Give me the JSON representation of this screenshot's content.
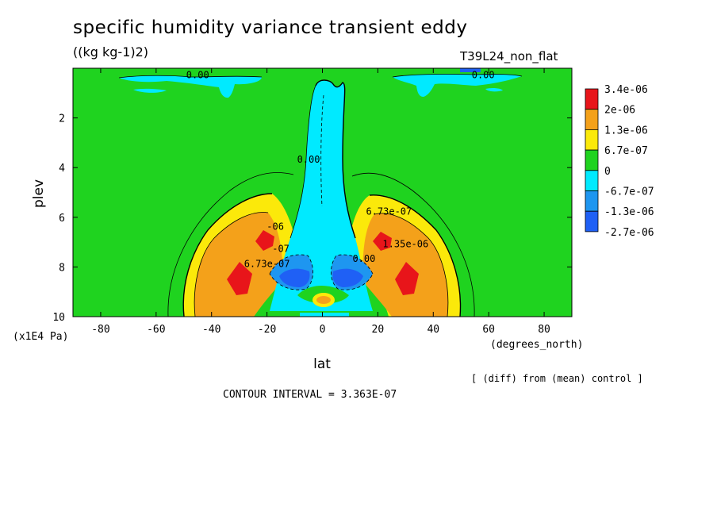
{
  "header": {
    "title": "specific humidity variance transient eddy",
    "units": "((kg kg-1)2)",
    "run_label": "T39L24_non_flat"
  },
  "footer": {
    "diff_note": "[ (diff) from (mean) control ]",
    "contour_interval": "CONTOUR INTERVAL = 3.363E-07"
  },
  "colors": {
    "c_plus3": "#e8151a",
    "c_plus2": "#f4a11a",
    "c_plus1": "#fbe90a",
    "c_zero": "#1fd31f",
    "c_minus1": "#00eaff",
    "c_minus2": "#1e96f0",
    "c_minus3": "#1f60f5"
  },
  "chart_data": {
    "type": "contour",
    "xlabel": "lat",
    "xunit": "(degrees_north)",
    "ylabel": "plev",
    "yunit": "(x1E4 Pa)",
    "xlim": [
      -90,
      90
    ],
    "ylim": [
      10,
      0
    ],
    "x_ticks": [
      "-80",
      "-60",
      "-40",
      "-20",
      "0",
      "20",
      "40",
      "60",
      "80"
    ],
    "x_tick_values": [
      -80,
      -60,
      -40,
      -20,
      0,
      20,
      40,
      60,
      80
    ],
    "y_ticks": [
      "2",
      "4",
      "6",
      "8",
      "10"
    ],
    "y_tick_values": [
      2,
      4,
      6,
      8,
      10
    ],
    "legend": {
      "placement": "right",
      "labels": [
        "3.4e-06",
        "2e-06",
        "1.3e-06",
        "6.7e-07",
        "0",
        "-6.7e-07",
        "-1.3e-06",
        "-2.7e-06"
      ],
      "colors": [
        "#e8151a",
        "#f4a11a",
        "#fbe90a",
        "#1fd31f",
        "#00eaff",
        "#1e96f0",
        "#1f60f5"
      ]
    },
    "contour_labels": [
      {
        "text": "0.00",
        "lat": -45,
        "plev": 0.4
      },
      {
        "text": "0.00",
        "lat": 58,
        "plev": 0.4
      },
      {
        "text": "0.00",
        "lat": -5,
        "plev": 3.8
      },
      {
        "text": "6.73e-07",
        "lat": 24,
        "plev": 5.9
      },
      {
        "text": "1.35e-06",
        "lat": 30,
        "plev": 7.2
      },
      {
        "text": "0.00",
        "lat": 15,
        "plev": 7.8
      },
      {
        "text": "-06",
        "lat": -17,
        "plev": 6.5
      },
      {
        "text": "-07",
        "lat": -15,
        "plev": 7.4
      },
      {
        "text": "6.73e-07",
        "lat": -20,
        "plev": 8.0
      }
    ],
    "contour_interval": 3.363e-07
  }
}
